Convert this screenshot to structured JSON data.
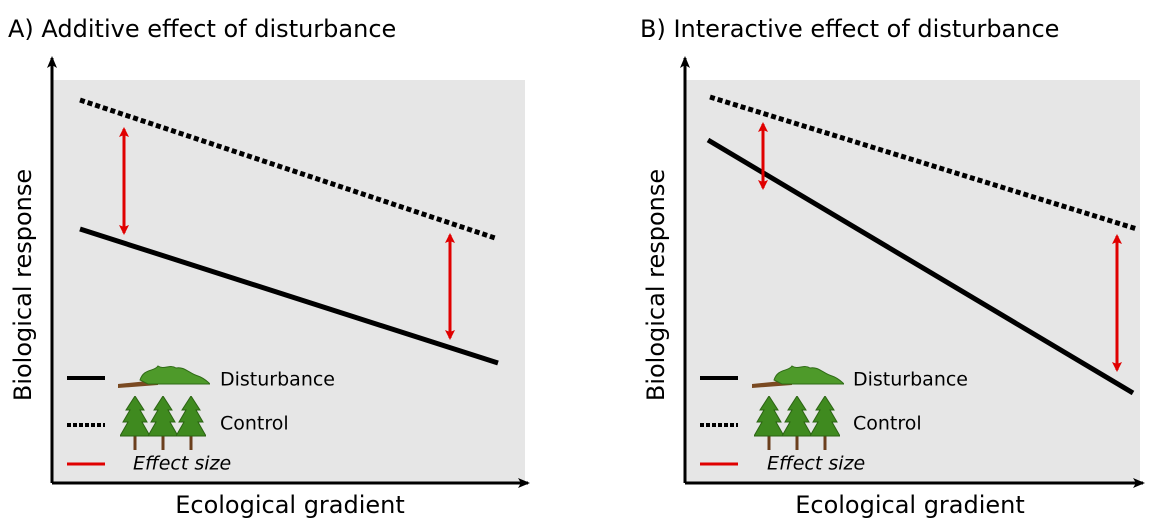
{
  "panels": [
    {
      "title": "A) Additive effect of disturbance",
      "x_label": "Ecological gradient",
      "y_label": "Biological response",
      "legend": [
        "Disturbance",
        "Control",
        "Effect size"
      ]
    },
    {
      "title": "B) Interactive effect of disturbance",
      "x_label": "Ecological gradient",
      "y_label": "Biological response",
      "legend": [
        "Disturbance",
        "Control",
        "Effect size"
      ]
    }
  ]
}
